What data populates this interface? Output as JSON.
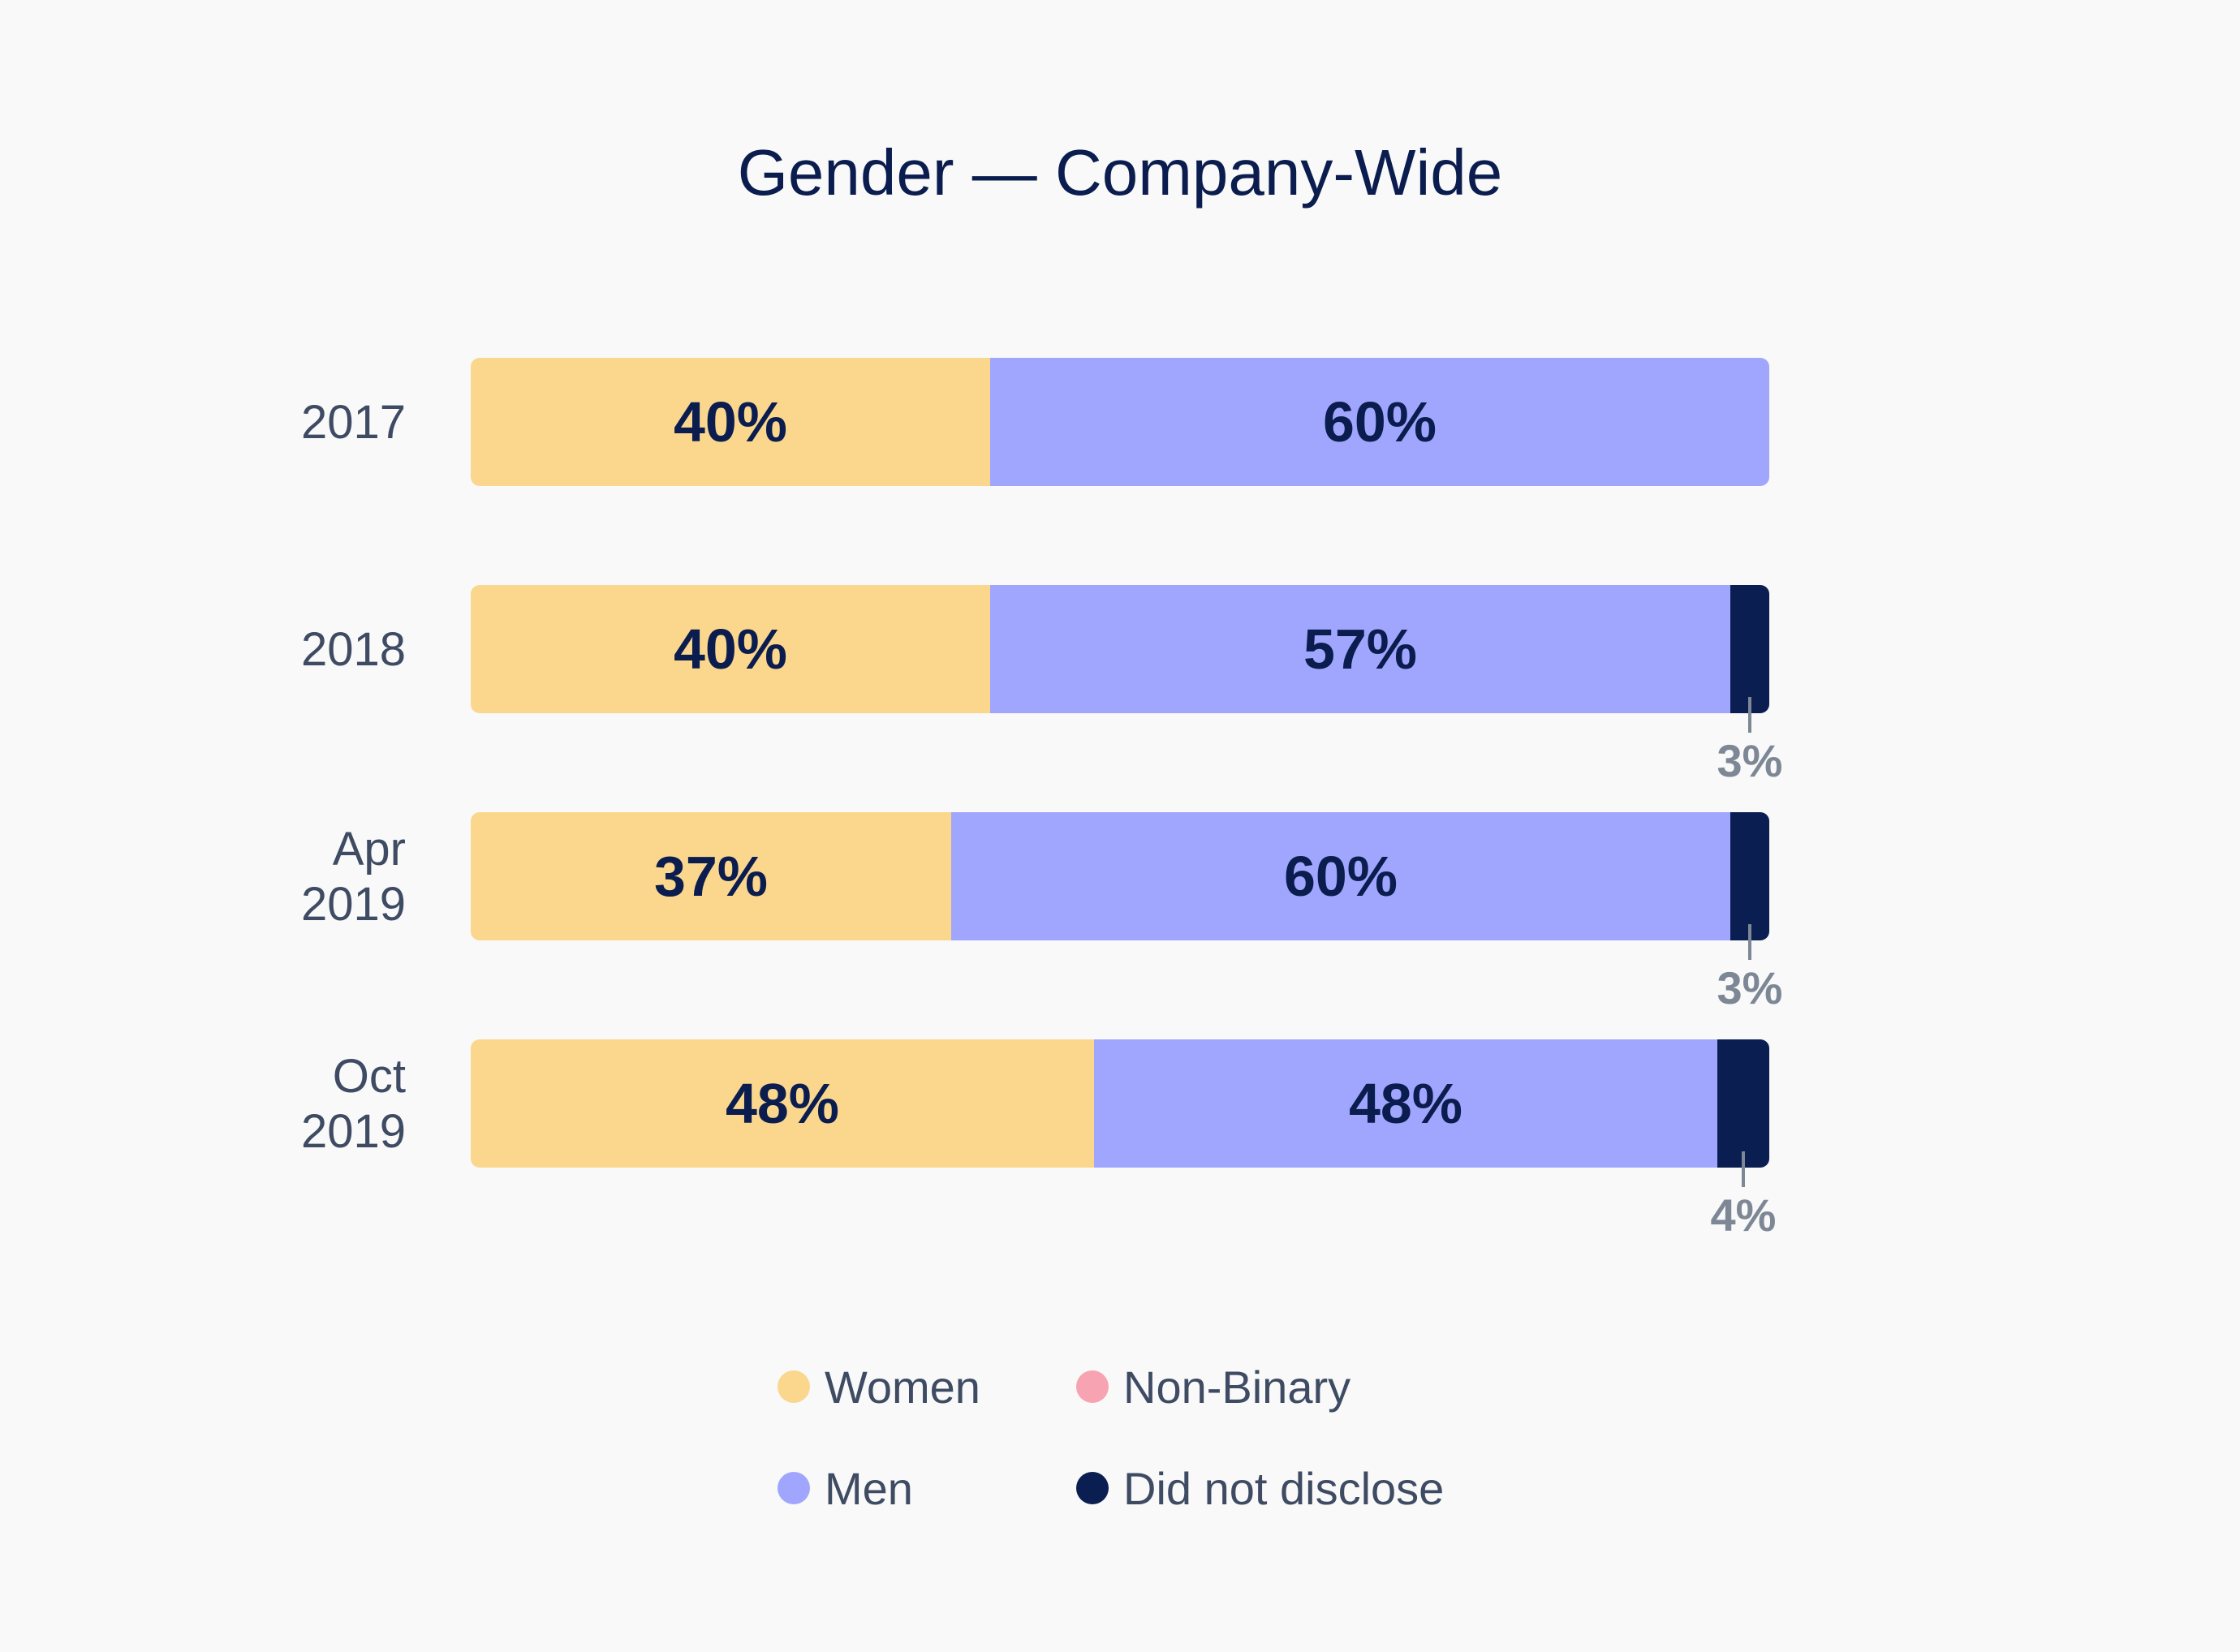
{
  "chart_data": {
    "type": "bar",
    "orientation": "horizontal",
    "stacked": true,
    "title": "Gender — Company-Wide",
    "categories": [
      [
        "2017"
      ],
      [
        "2018"
      ],
      [
        "Apr",
        "2019"
      ],
      [
        "Oct",
        "2019"
      ]
    ],
    "series": [
      {
        "name": "Women",
        "color": "#fbd78e",
        "values": [
          40,
          40,
          37,
          48
        ],
        "labels": [
          "40%",
          "40%",
          "37%",
          "48%"
        ]
      },
      {
        "name": "Non-Binary",
        "color": "#f7a3b2",
        "values": [
          0,
          0,
          0,
          0
        ],
        "labels": [
          "",
          "",
          "",
          ""
        ]
      },
      {
        "name": "Men",
        "color": "#a0a6fd",
        "values": [
          60,
          57,
          60,
          48
        ],
        "labels": [
          "60%",
          "57%",
          "60%",
          "48%"
        ]
      },
      {
        "name": "Did not disclose",
        "color": "#0a1e52",
        "values": [
          0,
          3,
          3,
          4
        ],
        "labels": [
          "",
          "3%",
          "3%",
          "4%"
        ]
      }
    ],
    "xlim": [
      0,
      100
    ],
    "grid": false,
    "legend_position": "bottom",
    "colors": {
      "background": "#f8f9f8",
      "title": "#0b1d4f",
      "bar_label": "#0b1d4f",
      "category_label": "#3e4b63",
      "small_label": "#7d8795"
    }
  }
}
